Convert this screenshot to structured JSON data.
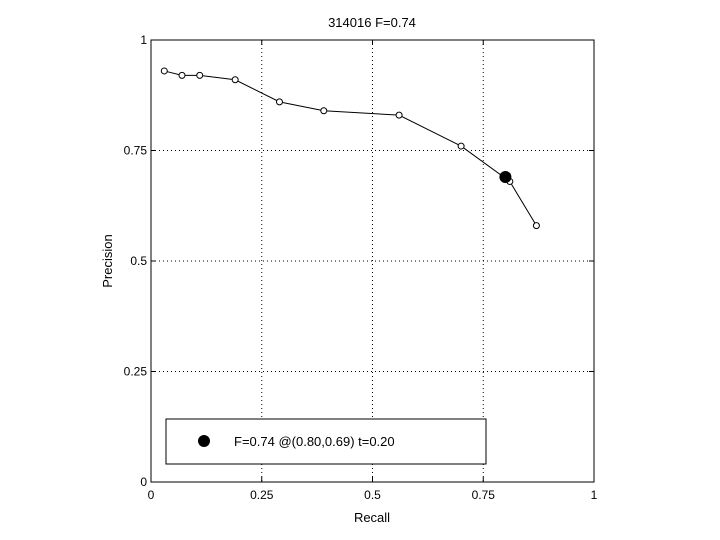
{
  "chart_data": {
    "type": "line",
    "title": "314016 F=0.74",
    "xlabel": "Recall",
    "ylabel": "Precision",
    "xlim": [
      0,
      1
    ],
    "ylim": [
      0,
      1
    ],
    "x_ticks": [
      0,
      0.25,
      0.5,
      0.75,
      1
    ],
    "x_tick_labels": [
      "0",
      "0.25",
      "0.5",
      "0.75",
      "1"
    ],
    "y_ticks": [
      0,
      0.25,
      0.5,
      0.75,
      1
    ],
    "y_tick_labels": [
      "0",
      "0.25",
      "0.5",
      "0.75",
      "1"
    ],
    "grid": true,
    "legend_position": "bottom",
    "series": [
      {
        "x": [
          0.03,
          0.07,
          0.11,
          0.19,
          0.29,
          0.39,
          0.56,
          0.7,
          0.81,
          0.87
        ],
        "y": [
          0.93,
          0.92,
          0.92,
          0.91,
          0.86,
          0.84,
          0.83,
          0.76,
          0.68,
          0.58
        ],
        "color": "#000000",
        "marker": "open-circle"
      }
    ],
    "highlight_point": {
      "x": 0.8,
      "y": 0.69,
      "color": "#000000",
      "marker": "filled-circle"
    },
    "legend_entries": [
      {
        "label": "F=0.74 @(0.80,0.69) t=0.20",
        "marker": "filled-circle"
      }
    ]
  }
}
